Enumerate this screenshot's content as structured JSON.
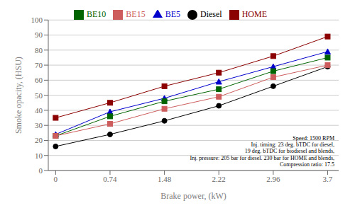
{
  "chart_data": {
    "type": "line",
    "x": [
      0,
      0.74,
      1.48,
      2.22,
      2.96,
      3.7
    ],
    "series": [
      {
        "name": "Diesel",
        "color": "#000000",
        "marker": "circle",
        "line_style": "solid",
        "values": [
          16,
          24,
          33,
          43,
          56,
          69
        ]
      },
      {
        "name": "HOME",
        "color": "#8B0000",
        "marker": "square",
        "line_style": "solid",
        "values": [
          35,
          45,
          56,
          65,
          76,
          89
        ]
      },
      {
        "name": "BE5",
        "color": "#0000CC",
        "marker": "triangle",
        "line_style": "solid",
        "values": [
          24,
          39,
          48,
          59,
          69,
          79
        ]
      },
      {
        "name": "BE10",
        "color": "#006400",
        "marker": "square",
        "line_style": "solid",
        "values": [
          23,
          36,
          46,
          54,
          66,
          75
        ]
      },
      {
        "name": "BE15",
        "color": "#CD5C5C",
        "marker": "square",
        "line_style": "solid",
        "values": [
          23,
          31,
          41,
          49,
          62,
          70
        ]
      }
    ],
    "xlabel": "Brake power, (kW)",
    "ylabel": "Smoke opacity, (HSU)",
    "xlim": [
      -0.1,
      3.85
    ],
    "ylim": [
      0,
      100
    ],
    "xticks": [
      0,
      0.74,
      1.48,
      2.22,
      2.96,
      3.7
    ],
    "yticks": [
      0,
      10,
      20,
      30,
      40,
      50,
      60,
      70,
      80,
      90,
      100
    ],
    "annotations": [
      "Speed: 1500 RPM",
      "Inj. timing: 23 deg. bTDC for diesel,",
      "19 deg. bTDC for biodiesel and blends,",
      "Inj. pressure: 205 bar for diesel. 230 bar for HOME and blends,",
      "Compression ratio: 17.5"
    ],
    "grid": "y",
    "legend": "top"
  }
}
